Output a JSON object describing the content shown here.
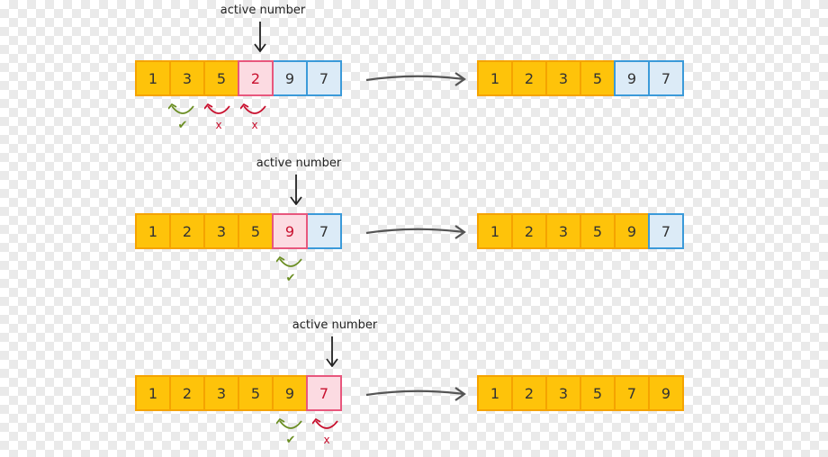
{
  "colors": {
    "sorted_fill": "#fec30a",
    "sorted_border": "#f5a300",
    "unsorted_fill": "#dcebf7",
    "unsorted_border": "#3b9ad9",
    "active_fill": "#fcdbe2",
    "active_border": "#e8577d",
    "active_text": "#c8102e",
    "ok_color": "#6b8e23",
    "fail_color": "#c8102e"
  },
  "steps": [
    {
      "active_label": "active number",
      "before": [
        {
          "value": "1",
          "state": "sorted"
        },
        {
          "value": "3",
          "state": "sorted"
        },
        {
          "value": "5",
          "state": "sorted"
        },
        {
          "value": "2",
          "state": "active"
        },
        {
          "value": "9",
          "state": "unsorted"
        },
        {
          "value": "7",
          "state": "unsorted"
        }
      ],
      "comparisons": [
        {
          "mark": "✔",
          "result": "ok"
        },
        {
          "mark": "x",
          "result": "fail"
        },
        {
          "mark": "x",
          "result": "fail"
        }
      ],
      "after": [
        {
          "value": "1",
          "state": "sorted"
        },
        {
          "value": "2",
          "state": "sorted"
        },
        {
          "value": "3",
          "state": "sorted"
        },
        {
          "value": "5",
          "state": "sorted"
        },
        {
          "value": "9",
          "state": "unsorted"
        },
        {
          "value": "7",
          "state": "unsorted"
        }
      ]
    },
    {
      "active_label": "active number",
      "before": [
        {
          "value": "1",
          "state": "sorted"
        },
        {
          "value": "2",
          "state": "sorted"
        },
        {
          "value": "3",
          "state": "sorted"
        },
        {
          "value": "5",
          "state": "sorted"
        },
        {
          "value": "9",
          "state": "active"
        },
        {
          "value": "7",
          "state": "unsorted"
        }
      ],
      "comparisons": [
        {
          "mark": "✔",
          "result": "ok"
        }
      ],
      "after": [
        {
          "value": "1",
          "state": "sorted"
        },
        {
          "value": "2",
          "state": "sorted"
        },
        {
          "value": "3",
          "state": "sorted"
        },
        {
          "value": "5",
          "state": "sorted"
        },
        {
          "value": "9",
          "state": "sorted"
        },
        {
          "value": "7",
          "state": "unsorted"
        }
      ]
    },
    {
      "active_label": "active number",
      "before": [
        {
          "value": "1",
          "state": "sorted"
        },
        {
          "value": "2",
          "state": "sorted"
        },
        {
          "value": "3",
          "state": "sorted"
        },
        {
          "value": "5",
          "state": "sorted"
        },
        {
          "value": "9",
          "state": "sorted"
        },
        {
          "value": "7",
          "state": "active"
        }
      ],
      "comparisons": [
        {
          "mark": "✔",
          "result": "ok"
        },
        {
          "mark": "x",
          "result": "fail"
        }
      ],
      "after": [
        {
          "value": "1",
          "state": "sorted"
        },
        {
          "value": "2",
          "state": "sorted"
        },
        {
          "value": "3",
          "state": "sorted"
        },
        {
          "value": "5",
          "state": "sorted"
        },
        {
          "value": "7",
          "state": "sorted"
        },
        {
          "value": "9",
          "state": "sorted"
        }
      ]
    }
  ]
}
